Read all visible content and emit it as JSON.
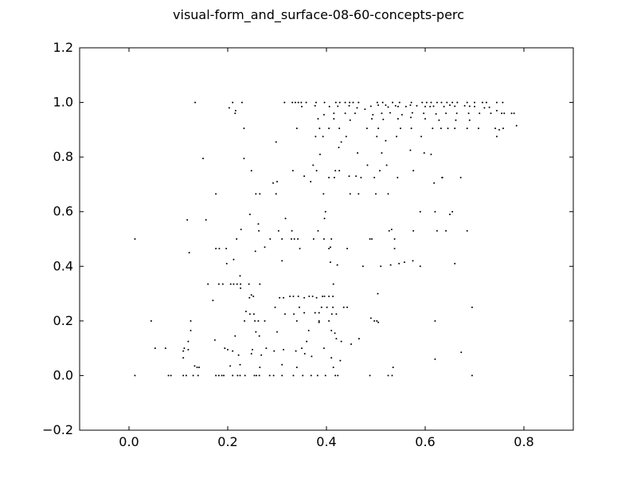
{
  "chart_data": {
    "type": "scatter",
    "title": "visual-form_and_surface-08-60-concepts-perc",
    "xlabel": "",
    "ylabel": "",
    "xlim": [
      -0.1,
      0.9
    ],
    "ylim": [
      -0.2,
      1.2
    ],
    "xticks": [
      0.0,
      0.2,
      0.4,
      0.6,
      0.8
    ],
    "yticks": [
      -0.2,
      0.0,
      0.2,
      0.4,
      0.6,
      0.8,
      1.0,
      1.2
    ],
    "xtick_labels": [
      "0.0",
      "0.2",
      "0.4",
      "0.6",
      "0.8"
    ],
    "ytick_labels": [
      "−0.2",
      "0.0",
      "0.2",
      "0.4",
      "0.6",
      "0.8",
      "1.0",
      "1.2"
    ],
    "grid": false,
    "marker_color": "#000000",
    "points": [
      [
        0.134,
        1.0
      ],
      [
        0.21,
        1.0
      ],
      [
        0.229,
        1.0
      ],
      [
        0.315,
        1.0
      ],
      [
        0.331,
        1.0
      ],
      [
        0.337,
        1.0
      ],
      [
        0.343,
        1.0
      ],
      [
        0.349,
        1.0
      ],
      [
        0.359,
        1.0
      ],
      [
        0.379,
        1.0
      ],
      [
        0.396,
        1.0
      ],
      [
        0.419,
        1.0
      ],
      [
        0.427,
        1.0
      ],
      [
        0.438,
        1.0
      ],
      [
        0.447,
        1.0
      ],
      [
        0.454,
        1.0
      ],
      [
        0.465,
        1.0
      ],
      [
        0.503,
        1.0
      ],
      [
        0.514,
        1.0
      ],
      [
        0.534,
        1.0
      ],
      [
        0.548,
        1.0
      ],
      [
        0.572,
        1.0
      ],
      [
        0.594,
        1.0
      ],
      [
        0.603,
        1.0
      ],
      [
        0.612,
        1.0
      ],
      [
        0.624,
        1.0
      ],
      [
        0.633,
        1.0
      ],
      [
        0.644,
        1.0
      ],
      [
        0.655,
        1.0
      ],
      [
        0.665,
        1.0
      ],
      [
        0.685,
        1.0
      ],
      [
        0.7,
        1.0
      ],
      [
        0.716,
        1.0
      ],
      [
        0.724,
        1.0
      ],
      [
        0.745,
        1.0
      ],
      [
        0.757,
        1.0
      ],
      [
        0.203,
        0.98
      ],
      [
        0.216,
        0.97
      ],
      [
        0.35,
        0.985
      ],
      [
        0.377,
        0.988
      ],
      [
        0.406,
        0.985
      ],
      [
        0.423,
        0.986
      ],
      [
        0.446,
        0.988
      ],
      [
        0.462,
        0.98
      ],
      [
        0.478,
        0.975
      ],
      [
        0.49,
        0.986
      ],
      [
        0.505,
        0.99
      ],
      [
        0.525,
        0.983
      ],
      [
        0.54,
        0.988
      ],
      [
        0.561,
        0.985
      ],
      [
        0.583,
        0.988
      ],
      [
        0.6,
        0.985
      ],
      [
        0.617,
        0.986
      ],
      [
        0.638,
        0.985
      ],
      [
        0.66,
        0.986
      ],
      [
        0.68,
        0.988
      ],
      [
        0.7,
        0.985
      ],
      [
        0.72,
        0.98
      ],
      [
        0.745,
        0.97
      ],
      [
        0.76,
        0.96
      ],
      [
        0.52,
        0.99
      ],
      [
        0.545,
        0.985
      ],
      [
        0.57,
        0.99
      ],
      [
        0.61,
        0.985
      ],
      [
        0.65,
        0.99
      ],
      [
        0.69,
        0.986
      ],
      [
        0.73,
        0.982
      ],
      [
        0.215,
        0.96
      ],
      [
        0.395,
        0.955
      ],
      [
        0.415,
        0.96
      ],
      [
        0.438,
        0.96
      ],
      [
        0.458,
        0.96
      ],
      [
        0.494,
        0.955
      ],
      [
        0.512,
        0.96
      ],
      [
        0.529,
        0.962
      ],
      [
        0.553,
        0.955
      ],
      [
        0.574,
        0.962
      ],
      [
        0.597,
        0.96
      ],
      [
        0.622,
        0.958
      ],
      [
        0.642,
        0.96
      ],
      [
        0.664,
        0.96
      ],
      [
        0.688,
        0.96
      ],
      [
        0.71,
        0.96
      ],
      [
        0.733,
        0.96
      ],
      [
        0.755,
        0.96
      ],
      [
        0.775,
        0.96
      ],
      [
        0.78,
        0.96
      ],
      [
        0.383,
        0.94
      ],
      [
        0.415,
        0.94
      ],
      [
        0.448,
        0.935
      ],
      [
        0.492,
        0.94
      ],
      [
        0.515,
        0.938
      ],
      [
        0.545,
        0.94
      ],
      [
        0.571,
        0.945
      ],
      [
        0.6,
        0.94
      ],
      [
        0.628,
        0.935
      ],
      [
        0.662,
        0.935
      ],
      [
        0.69,
        0.935
      ],
      [
        0.233,
        0.905
      ],
      [
        0.34,
        0.905
      ],
      [
        0.386,
        0.905
      ],
      [
        0.405,
        0.905
      ],
      [
        0.426,
        0.905
      ],
      [
        0.482,
        0.905
      ],
      [
        0.505,
        0.905
      ],
      [
        0.55,
        0.905
      ],
      [
        0.572,
        0.905
      ],
      [
        0.615,
        0.905
      ],
      [
        0.632,
        0.905
      ],
      [
        0.646,
        0.905
      ],
      [
        0.66,
        0.905
      ],
      [
        0.685,
        0.905
      ],
      [
        0.708,
        0.905
      ],
      [
        0.742,
        0.905
      ],
      [
        0.758,
        0.905
      ],
      [
        0.785,
        0.915
      ],
      [
        0.378,
        0.875
      ],
      [
        0.393,
        0.875
      ],
      [
        0.44,
        0.875
      ],
      [
        0.502,
        0.875
      ],
      [
        0.52,
        0.86
      ],
      [
        0.542,
        0.875
      ],
      [
        0.592,
        0.875
      ],
      [
        0.745,
        0.875
      ],
      [
        0.75,
        0.9
      ],
      [
        0.298,
        0.855
      ],
      [
        0.387,
        0.81
      ],
      [
        0.425,
        0.835
      ],
      [
        0.43,
        0.855
      ],
      [
        0.463,
        0.815
      ],
      [
        0.512,
        0.815
      ],
      [
        0.57,
        0.825
      ],
      [
        0.598,
        0.815
      ],
      [
        0.612,
        0.81
      ],
      [
        0.15,
        0.795
      ],
      [
        0.233,
        0.795
      ],
      [
        0.373,
        0.77
      ],
      [
        0.418,
        0.75
      ],
      [
        0.426,
        0.75
      ],
      [
        0.483,
        0.77
      ],
      [
        0.508,
        0.75
      ],
      [
        0.522,
        0.77
      ],
      [
        0.576,
        0.75
      ],
      [
        0.635,
        0.725
      ],
      [
        0.672,
        0.725
      ],
      [
        0.248,
        0.75
      ],
      [
        0.332,
        0.75
      ],
      [
        0.38,
        0.75
      ],
      [
        0.46,
        0.73
      ],
      [
        0.355,
        0.73
      ],
      [
        0.405,
        0.725
      ],
      [
        0.416,
        0.725
      ],
      [
        0.446,
        0.73
      ],
      [
        0.47,
        0.725
      ],
      [
        0.497,
        0.725
      ],
      [
        0.544,
        0.725
      ],
      [
        0.618,
        0.705
      ],
      [
        0.634,
        0.725
      ],
      [
        0.292,
        0.705
      ],
      [
        0.3,
        0.71
      ],
      [
        0.368,
        0.71
      ],
      [
        0.176,
        0.665
      ],
      [
        0.257,
        0.665
      ],
      [
        0.265,
        0.665
      ],
      [
        0.298,
        0.665
      ],
      [
        0.394,
        0.665
      ],
      [
        0.448,
        0.665
      ],
      [
        0.465,
        0.665
      ],
      [
        0.5,
        0.665
      ],
      [
        0.525,
        0.665
      ],
      [
        0.398,
        0.6
      ],
      [
        0.245,
        0.59
      ],
      [
        0.317,
        0.575
      ],
      [
        0.396,
        0.575
      ],
      [
        0.118,
        0.57
      ],
      [
        0.156,
        0.57
      ],
      [
        0.59,
        0.6
      ],
      [
        0.62,
        0.6
      ],
      [
        0.65,
        0.59
      ],
      [
        0.655,
        0.6
      ],
      [
        0.262,
        0.555
      ],
      [
        0.227,
        0.535
      ],
      [
        0.263,
        0.53
      ],
      [
        0.303,
        0.53
      ],
      [
        0.33,
        0.53
      ],
      [
        0.383,
        0.53
      ],
      [
        0.527,
        0.53
      ],
      [
        0.532,
        0.535
      ],
      [
        0.576,
        0.53
      ],
      [
        0.624,
        0.53
      ],
      [
        0.642,
        0.53
      ],
      [
        0.685,
        0.53
      ],
      [
        0.012,
        0.5
      ],
      [
        0.218,
        0.5
      ],
      [
        0.286,
        0.5
      ],
      [
        0.31,
        0.5
      ],
      [
        0.329,
        0.5
      ],
      [
        0.335,
        0.5
      ],
      [
        0.342,
        0.5
      ],
      [
        0.374,
        0.5
      ],
      [
        0.395,
        0.5
      ],
      [
        0.41,
        0.5
      ],
      [
        0.488,
        0.5
      ],
      [
        0.492,
        0.5
      ],
      [
        0.538,
        0.5
      ],
      [
        0.176,
        0.465
      ],
      [
        0.183,
        0.465
      ],
      [
        0.197,
        0.465
      ],
      [
        0.275,
        0.47
      ],
      [
        0.346,
        0.465
      ],
      [
        0.405,
        0.465
      ],
      [
        0.408,
        0.47
      ],
      [
        0.442,
        0.465
      ],
      [
        0.538,
        0.465
      ],
      [
        0.122,
        0.45
      ],
      [
        0.256,
        0.455
      ],
      [
        0.212,
        0.425
      ],
      [
        0.198,
        0.41
      ],
      [
        0.31,
        0.42
      ],
      [
        0.408,
        0.415
      ],
      [
        0.422,
        0.405
      ],
      [
        0.474,
        0.4
      ],
      [
        0.51,
        0.4
      ],
      [
        0.53,
        0.405
      ],
      [
        0.547,
        0.41
      ],
      [
        0.558,
        0.415
      ],
      [
        0.575,
        0.42
      ],
      [
        0.59,
        0.4
      ],
      [
        0.66,
        0.41
      ],
      [
        0.225,
        0.365
      ],
      [
        0.16,
        0.335
      ],
      [
        0.182,
        0.335
      ],
      [
        0.19,
        0.335
      ],
      [
        0.206,
        0.335
      ],
      [
        0.212,
        0.335
      ],
      [
        0.219,
        0.335
      ],
      [
        0.226,
        0.335
      ],
      [
        0.243,
        0.335
      ],
      [
        0.265,
        0.335
      ],
      [
        0.414,
        0.335
      ],
      [
        0.17,
        0.275
      ],
      [
        0.226,
        0.32
      ],
      [
        0.248,
        0.295
      ],
      [
        0.244,
        0.285
      ],
      [
        0.252,
        0.29
      ],
      [
        0.305,
        0.285
      ],
      [
        0.313,
        0.285
      ],
      [
        0.326,
        0.29
      ],
      [
        0.333,
        0.29
      ],
      [
        0.343,
        0.29
      ],
      [
        0.355,
        0.285
      ],
      [
        0.365,
        0.29
      ],
      [
        0.372,
        0.29
      ],
      [
        0.38,
        0.285
      ],
      [
        0.392,
        0.29
      ],
      [
        0.396,
        0.29
      ],
      [
        0.405,
        0.29
      ],
      [
        0.413,
        0.29
      ],
      [
        0.504,
        0.3
      ],
      [
        0.296,
        0.25
      ],
      [
        0.345,
        0.25
      ],
      [
        0.39,
        0.25
      ],
      [
        0.401,
        0.25
      ],
      [
        0.413,
        0.25
      ],
      [
        0.435,
        0.25
      ],
      [
        0.442,
        0.25
      ],
      [
        0.695,
        0.25
      ],
      [
        0.237,
        0.235
      ],
      [
        0.245,
        0.225
      ],
      [
        0.253,
        0.225
      ],
      [
        0.316,
        0.225
      ],
      [
        0.334,
        0.225
      ],
      [
        0.355,
        0.23
      ],
      [
        0.377,
        0.23
      ],
      [
        0.385,
        0.23
      ],
      [
        0.411,
        0.225
      ],
      [
        0.42,
        0.225
      ],
      [
        0.045,
        0.2
      ],
      [
        0.125,
        0.2
      ],
      [
        0.234,
        0.2
      ],
      [
        0.255,
        0.2
      ],
      [
        0.262,
        0.2
      ],
      [
        0.275,
        0.2
      ],
      [
        0.34,
        0.2
      ],
      [
        0.385,
        0.2
      ],
      [
        0.405,
        0.2
      ],
      [
        0.49,
        0.21
      ],
      [
        0.497,
        0.2
      ],
      [
        0.502,
        0.2
      ],
      [
        0.505,
        0.195
      ],
      [
        0.62,
        0.2
      ],
      [
        0.125,
        0.165
      ],
      [
        0.257,
        0.16
      ],
      [
        0.3,
        0.16
      ],
      [
        0.364,
        0.165
      ],
      [
        0.41,
        0.165
      ],
      [
        0.417,
        0.155
      ],
      [
        0.385,
        0.195
      ],
      [
        0.42,
        0.135
      ],
      [
        0.215,
        0.145
      ],
      [
        0.264,
        0.145
      ],
      [
        0.43,
        0.125
      ],
      [
        0.36,
        0.125
      ],
      [
        0.12,
        0.125
      ],
      [
        0.174,
        0.13
      ],
      [
        0.466,
        0.135
      ],
      [
        0.45,
        0.115
      ],
      [
        0.053,
        0.1
      ],
      [
        0.074,
        0.1
      ],
      [
        0.112,
        0.1
      ],
      [
        0.12,
        0.095
      ],
      [
        0.194,
        0.1
      ],
      [
        0.2,
        0.095
      ],
      [
        0.21,
        0.09
      ],
      [
        0.25,
        0.095
      ],
      [
        0.278,
        0.1
      ],
      [
        0.313,
        0.095
      ],
      [
        0.35,
        0.1
      ],
      [
        0.395,
        0.1
      ],
      [
        0.11,
        0.09
      ],
      [
        0.222,
        0.075
      ],
      [
        0.248,
        0.08
      ],
      [
        0.268,
        0.075
      ],
      [
        0.294,
        0.09
      ],
      [
        0.338,
        0.09
      ],
      [
        0.356,
        0.08
      ],
      [
        0.41,
        0.065
      ],
      [
        0.673,
        0.085
      ],
      [
        0.428,
        0.055
      ],
      [
        0.11,
        0.065
      ],
      [
        0.37,
        0.07
      ],
      [
        0.62,
        0.06
      ],
      [
        0.138,
        0.03
      ],
      [
        0.133,
        0.035
      ],
      [
        0.142,
        0.03
      ],
      [
        0.205,
        0.035
      ],
      [
        0.225,
        0.04
      ],
      [
        0.265,
        0.03
      ],
      [
        0.31,
        0.04
      ],
      [
        0.34,
        0.03
      ],
      [
        0.414,
        0.03
      ],
      [
        0.535,
        0.03
      ],
      [
        0.012,
        0.0
      ],
      [
        0.08,
        0.0
      ],
      [
        0.085,
        0.0
      ],
      [
        0.11,
        0.0
      ],
      [
        0.116,
        0.0
      ],
      [
        0.13,
        0.0
      ],
      [
        0.14,
        0.0
      ],
      [
        0.176,
        0.0
      ],
      [
        0.182,
        0.0
      ],
      [
        0.188,
        0.0
      ],
      [
        0.192,
        0.0
      ],
      [
        0.21,
        0.0
      ],
      [
        0.22,
        0.0
      ],
      [
        0.225,
        0.0
      ],
      [
        0.235,
        0.0
      ],
      [
        0.254,
        0.0
      ],
      [
        0.258,
        0.0
      ],
      [
        0.264,
        0.0
      ],
      [
        0.285,
        0.0
      ],
      [
        0.293,
        0.0
      ],
      [
        0.31,
        0.0
      ],
      [
        0.333,
        0.0
      ],
      [
        0.352,
        0.0
      ],
      [
        0.369,
        0.0
      ],
      [
        0.382,
        0.0
      ],
      [
        0.398,
        0.0
      ],
      [
        0.418,
        0.0
      ],
      [
        0.423,
        0.0
      ],
      [
        0.488,
        0.0
      ],
      [
        0.525,
        0.0
      ],
      [
        0.533,
        0.0
      ],
      [
        0.695,
        0.0
      ]
    ]
  }
}
